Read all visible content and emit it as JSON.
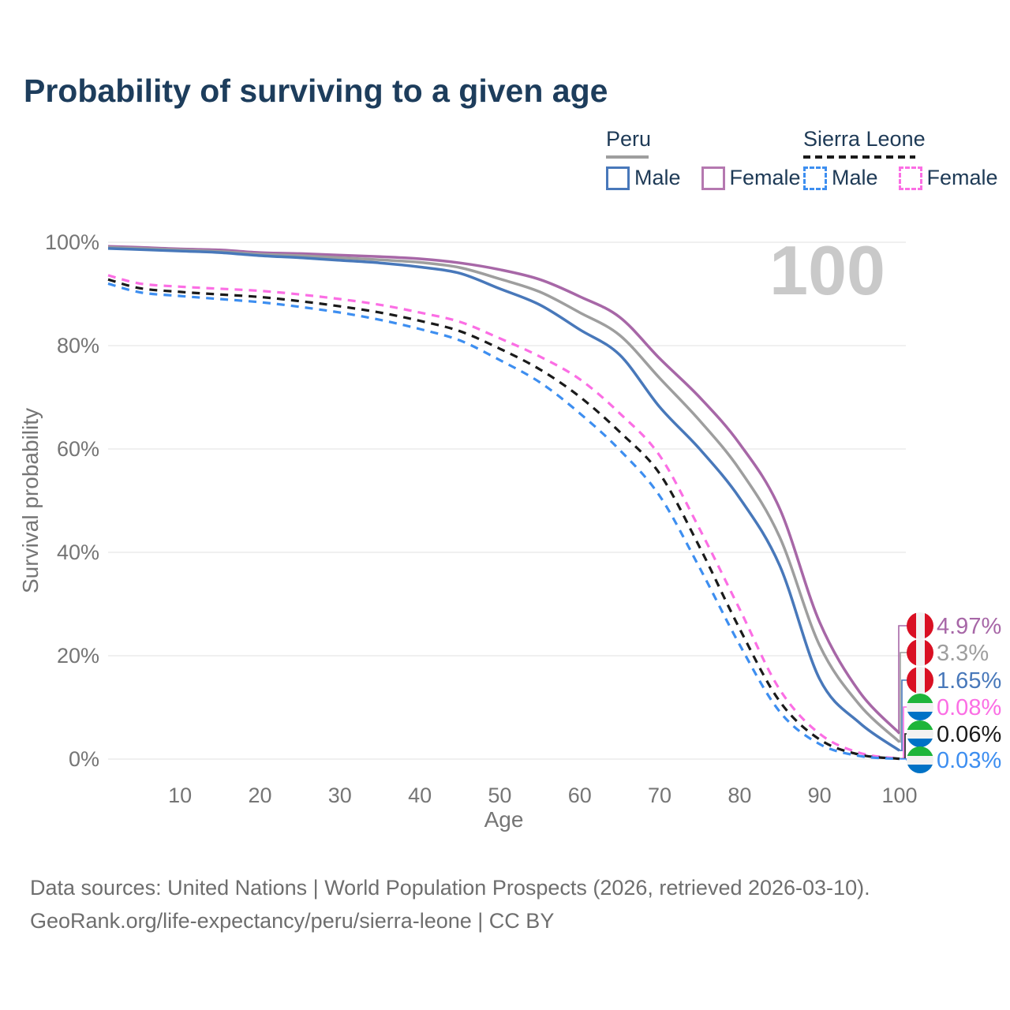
{
  "title": "Probability of surviving to a given age",
  "watermark": "100",
  "legend": {
    "peru": {
      "title": "Peru",
      "male": "Male",
      "female": "Female"
    },
    "sierra_leone": {
      "title": "Sierra Leone",
      "male": "Male",
      "female": "Female"
    }
  },
  "footer": {
    "line1": "Data sources: United Nations | World Population Prospects (2026, retrieved 2026-03-10).",
    "line2": "GeoRank.org/life-expectancy/peru/sierra-leone | CC BY"
  },
  "colors": {
    "peru_female": "#a767a7",
    "peru_all": "#9e9e9e",
    "peru_male": "#4878ba",
    "sl_female": "#fb6ee4",
    "sl_all": "#1a1a1a",
    "sl_male": "#3d8ef0",
    "title_text": "#1d3d5c",
    "axis_text": "#757575",
    "grid": "#e8e8e8",
    "watermark": "#c9c9c9",
    "footer_text": "#6e6e6e",
    "flag_peru_red": "#d91023",
    "flag_sl_green": "#1eb53a",
    "flag_sl_blue": "#0072c6"
  },
  "chart_data": {
    "type": "line",
    "title": "Probability of surviving to a given age",
    "xlabel": "Age",
    "ylabel": "Survival probability",
    "xlim": [
      1,
      100
    ],
    "ylim": [
      0,
      100
    ],
    "x_ticks": [
      10,
      20,
      30,
      40,
      50,
      60,
      70,
      80,
      90,
      100
    ],
    "y_ticks": [
      0,
      20,
      40,
      60,
      80,
      100
    ],
    "y_tick_suffix": "%",
    "grid": true,
    "legend_position": "top-right",
    "x": [
      1,
      5,
      10,
      15,
      20,
      25,
      30,
      35,
      40,
      45,
      50,
      55,
      60,
      65,
      70,
      75,
      80,
      85,
      90,
      95,
      100
    ],
    "series": [
      {
        "name": "Peru Female",
        "country": "Peru",
        "sex": "Female",
        "color_key": "peru_female",
        "style": "solid",
        "flag": "peru",
        "end_label": "4.97%",
        "end_value": 4.97,
        "values": [
          99.2,
          99.0,
          98.7,
          98.5,
          98.0,
          97.8,
          97.5,
          97.2,
          96.8,
          96.0,
          94.7,
          92.8,
          89.5,
          85.5,
          77.5,
          70.0,
          61.0,
          48.5,
          26.5,
          13.0,
          4.97
        ]
      },
      {
        "name": "Peru Both sexes",
        "country": "Peru",
        "sex": "Both",
        "color_key": "peru_all",
        "style": "solid",
        "flag": "peru",
        "end_label": "3.3%",
        "end_value": 3.3,
        "values": [
          99.0,
          98.8,
          98.5,
          98.2,
          97.7,
          97.4,
          97.0,
          96.6,
          96.1,
          95.1,
          92.9,
          90.4,
          86.4,
          82.0,
          73.7,
          65.5,
          56.0,
          43.0,
          22.0,
          10.5,
          3.3
        ]
      },
      {
        "name": "Peru Male",
        "country": "Peru",
        "sex": "Male",
        "color_key": "peru_male",
        "style": "solid",
        "flag": "peru",
        "end_label": "1.65%",
        "end_value": 1.65,
        "values": [
          98.8,
          98.6,
          98.3,
          98.0,
          97.4,
          97.0,
          96.5,
          96.0,
          95.2,
          94.0,
          91.0,
          87.9,
          83.1,
          78.2,
          68.1,
          60.0,
          50.5,
          37.5,
          15.5,
          7.0,
          1.65
        ]
      },
      {
        "name": "Sierra Leone Female",
        "country": "Sierra Leone",
        "sex": "Female",
        "color_key": "sl_female",
        "style": "dashed",
        "flag": "sierra_leone",
        "end_label": "0.08%",
        "end_value": 0.08,
        "values": [
          93.6,
          92.0,
          91.4,
          91.0,
          90.6,
          89.9,
          89.0,
          87.9,
          86.4,
          84.6,
          81.4,
          77.9,
          73.5,
          66.9,
          58.7,
          44.5,
          29.0,
          13.5,
          4.9,
          1.2,
          0.08
        ]
      },
      {
        "name": "Sierra Leone Both sexes",
        "country": "Sierra Leone",
        "sex": "Both",
        "color_key": "sl_all",
        "style": "dashed",
        "flag": "sierra_leone",
        "end_label": "0.06%",
        "end_value": 0.06,
        "values": [
          92.8,
          91.1,
          90.4,
          89.9,
          89.4,
          88.6,
          87.6,
          86.4,
          84.8,
          82.8,
          79.4,
          75.4,
          70.1,
          63.3,
          55.2,
          41.0,
          25.2,
          11.2,
          3.8,
          0.85,
          0.06
        ]
      },
      {
        "name": "Sierra Leone Male",
        "country": "Sierra Leone",
        "sex": "Male",
        "color_key": "sl_male",
        "style": "dashed",
        "flag": "sierra_leone",
        "end_label": "0.03%",
        "end_value": 0.03,
        "values": [
          92.0,
          90.3,
          89.6,
          89.0,
          88.4,
          87.5,
          86.4,
          85.0,
          83.2,
          81.0,
          77.2,
          72.9,
          66.9,
          59.8,
          50.9,
          37.0,
          22.1,
          9.2,
          2.9,
          0.6,
          0.03
        ]
      }
    ]
  }
}
